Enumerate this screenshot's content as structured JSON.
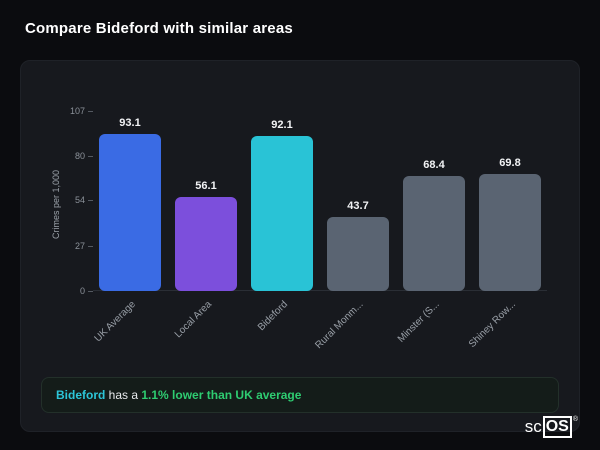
{
  "page": {
    "title": "Compare Bideford with similar areas"
  },
  "chart_data": {
    "type": "bar",
    "title": "",
    "xlabel": "",
    "ylabel": "Crimes per 1,000",
    "ylim": [
      0,
      107
    ],
    "yticks": [
      107,
      80,
      54,
      27,
      0
    ],
    "grid": false,
    "legend": false,
    "categories": [
      "UK Average",
      "Local Area",
      "Bideford",
      "Rural Monm...",
      "Minster (S...",
      "Shiney Row..."
    ],
    "values": [
      93.1,
      56.1,
      92.1,
      43.7,
      68.4,
      69.8
    ],
    "colors": [
      "#3a6be4",
      "#7c4fdc",
      "#29c3d6",
      "#5a6472",
      "#5a6472",
      "#5a6472"
    ]
  },
  "summary": {
    "area": "Bideford",
    "connector": " has a ",
    "stat": "1.1% lower than UK average"
  },
  "logo": {
    "sc": "sc",
    "os": "OS",
    "reg": "®"
  }
}
